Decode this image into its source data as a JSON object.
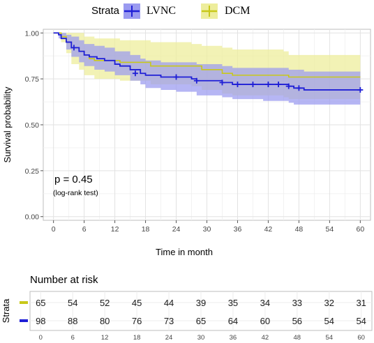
{
  "chart_data": {
    "type": "line",
    "subtype": "kaplan-meier",
    "legend": {
      "title": "Strata",
      "placement": "top",
      "entries": [
        {
          "name": "LVNC",
          "color": "#1f1fd6",
          "band_color": "#9a9af0"
        },
        {
          "name": "DCM",
          "color": "#c8c81a",
          "band_color": "#eded9c"
        }
      ]
    },
    "xlabel": "Time in month",
    "ylabel": "Survival probability",
    "xlim": [
      -2,
      62
    ],
    "ylim": [
      -0.02,
      1.02
    ],
    "x_ticks": [
      0,
      6,
      12,
      18,
      24,
      30,
      36,
      42,
      48,
      54,
      60
    ],
    "y_ticks": [
      0.0,
      0.25,
      0.5,
      0.75,
      1.0
    ],
    "y_tick_labels": [
      "0.00",
      "0.25",
      "0.50",
      "0.75",
      "1.00"
    ],
    "grid": true,
    "annotation": {
      "main": "p = 0.45",
      "sub": "(log-rank test)"
    },
    "series": [
      {
        "name": "LVNC",
        "color": "#1f1fd6",
        "steps": [
          [
            0,
            1.0
          ],
          [
            1,
            0.99
          ],
          [
            1.5,
            0.97
          ],
          [
            2.5,
            0.95
          ],
          [
            3.5,
            0.92
          ],
          [
            5,
            0.9
          ],
          [
            6,
            0.88
          ],
          [
            7,
            0.87
          ],
          [
            8.5,
            0.86
          ],
          [
            10,
            0.85
          ],
          [
            12,
            0.83
          ],
          [
            13,
            0.82
          ],
          [
            15,
            0.8
          ],
          [
            17,
            0.78
          ],
          [
            18,
            0.77
          ],
          [
            21,
            0.76
          ],
          [
            24,
            0.76
          ],
          [
            27,
            0.75
          ],
          [
            28,
            0.74
          ],
          [
            33,
            0.73
          ],
          [
            35,
            0.72
          ],
          [
            41,
            0.72
          ],
          [
            46,
            0.71
          ],
          [
            47,
            0.7
          ],
          [
            49,
            0.69
          ],
          [
            60,
            0.69
          ]
        ],
        "upper": [
          [
            0,
            1.0
          ],
          [
            1,
            1.0
          ],
          [
            2.5,
            0.99
          ],
          [
            3.5,
            0.98
          ],
          [
            5,
            0.96
          ],
          [
            6,
            0.94
          ],
          [
            8,
            0.93
          ],
          [
            10,
            0.92
          ],
          [
            12,
            0.9
          ],
          [
            15,
            0.88
          ],
          [
            17,
            0.86
          ],
          [
            18,
            0.85
          ],
          [
            21,
            0.84
          ],
          [
            24,
            0.84
          ],
          [
            28,
            0.83
          ],
          [
            33,
            0.82
          ],
          [
            35,
            0.81
          ],
          [
            41,
            0.81
          ],
          [
            46,
            0.8
          ],
          [
            47,
            0.8
          ],
          [
            49,
            0.79
          ],
          [
            60,
            0.79
          ]
        ],
        "lower": [
          [
            0,
            1.0
          ],
          [
            1,
            0.97
          ],
          [
            2.5,
            0.91
          ],
          [
            3.5,
            0.87
          ],
          [
            5,
            0.84
          ],
          [
            6,
            0.82
          ],
          [
            8,
            0.8
          ],
          [
            10,
            0.79
          ],
          [
            12,
            0.77
          ],
          [
            15,
            0.74
          ],
          [
            17,
            0.72
          ],
          [
            18,
            0.7
          ],
          [
            21,
            0.69
          ],
          [
            24,
            0.68
          ],
          [
            28,
            0.66
          ],
          [
            33,
            0.65
          ],
          [
            35,
            0.64
          ],
          [
            41,
            0.63
          ],
          [
            46,
            0.62
          ],
          [
            47,
            0.61
          ],
          [
            49,
            0.61
          ],
          [
            60,
            0.61
          ]
        ],
        "censors": [
          [
            4,
            0.92
          ],
          [
            16,
            0.78
          ],
          [
            24,
            0.76
          ],
          [
            28,
            0.74
          ],
          [
            33,
            0.73
          ],
          [
            36,
            0.72
          ],
          [
            39,
            0.72
          ],
          [
            42,
            0.72
          ],
          [
            44,
            0.72
          ],
          [
            46,
            0.71
          ],
          [
            48,
            0.7
          ],
          [
            60,
            0.69
          ]
        ]
      },
      {
        "name": "DCM",
        "color": "#c8c81a",
        "steps": [
          [
            0,
            1.0
          ],
          [
            1.5,
            0.98
          ],
          [
            2.5,
            0.95
          ],
          [
            3.5,
            0.92
          ],
          [
            5,
            0.9
          ],
          [
            6,
            0.88
          ],
          [
            7,
            0.86
          ],
          [
            8,
            0.85
          ],
          [
            13,
            0.84
          ],
          [
            18,
            0.84
          ],
          [
            19,
            0.82
          ],
          [
            27,
            0.82
          ],
          [
            29,
            0.8
          ],
          [
            33,
            0.78
          ],
          [
            35,
            0.77
          ],
          [
            45,
            0.77
          ],
          [
            46,
            0.76
          ],
          [
            60,
            0.76
          ]
        ],
        "upper": [
          [
            0,
            1.0
          ],
          [
            1.5,
            1.0
          ],
          [
            3.5,
            1.0
          ],
          [
            6,
            0.98
          ],
          [
            8,
            0.97
          ],
          [
            13,
            0.96
          ],
          [
            18,
            0.96
          ],
          [
            19,
            0.95
          ],
          [
            27,
            0.94
          ],
          [
            29,
            0.93
          ],
          [
            33,
            0.92
          ],
          [
            35,
            0.91
          ],
          [
            45,
            0.9
          ],
          [
            46,
            0.88
          ],
          [
            60,
            0.88
          ]
        ],
        "lower": [
          [
            0,
            1.0
          ],
          [
            1.5,
            0.95
          ],
          [
            2.5,
            0.89
          ],
          [
            3.5,
            0.83
          ],
          [
            5,
            0.8
          ],
          [
            6,
            0.77
          ],
          [
            8,
            0.75
          ],
          [
            13,
            0.74
          ],
          [
            18,
            0.74
          ],
          [
            19,
            0.72
          ],
          [
            27,
            0.71
          ],
          [
            29,
            0.69
          ],
          [
            33,
            0.67
          ],
          [
            35,
            0.66
          ],
          [
            45,
            0.65
          ],
          [
            46,
            0.64
          ],
          [
            60,
            0.64
          ]
        ]
      }
    ],
    "risk_table": {
      "title": "Number at risk",
      "strata_label": "Strata",
      "times": [
        "0",
        "6",
        "12",
        "18",
        "24",
        "30",
        "36",
        "42",
        "48",
        "54",
        "60"
      ],
      "rows": [
        {
          "name": "DCM",
          "color": "#c8c81a",
          "counts": [
            "65",
            "54",
            "52",
            "45",
            "44",
            "39",
            "35",
            "34",
            "33",
            "32",
            "31"
          ]
        },
        {
          "name": "LVNC",
          "color": "#1f1fd6",
          "counts": [
            "98",
            "88",
            "80",
            "76",
            "73",
            "65",
            "64",
            "60",
            "56",
            "54",
            "54"
          ]
        }
      ]
    }
  }
}
